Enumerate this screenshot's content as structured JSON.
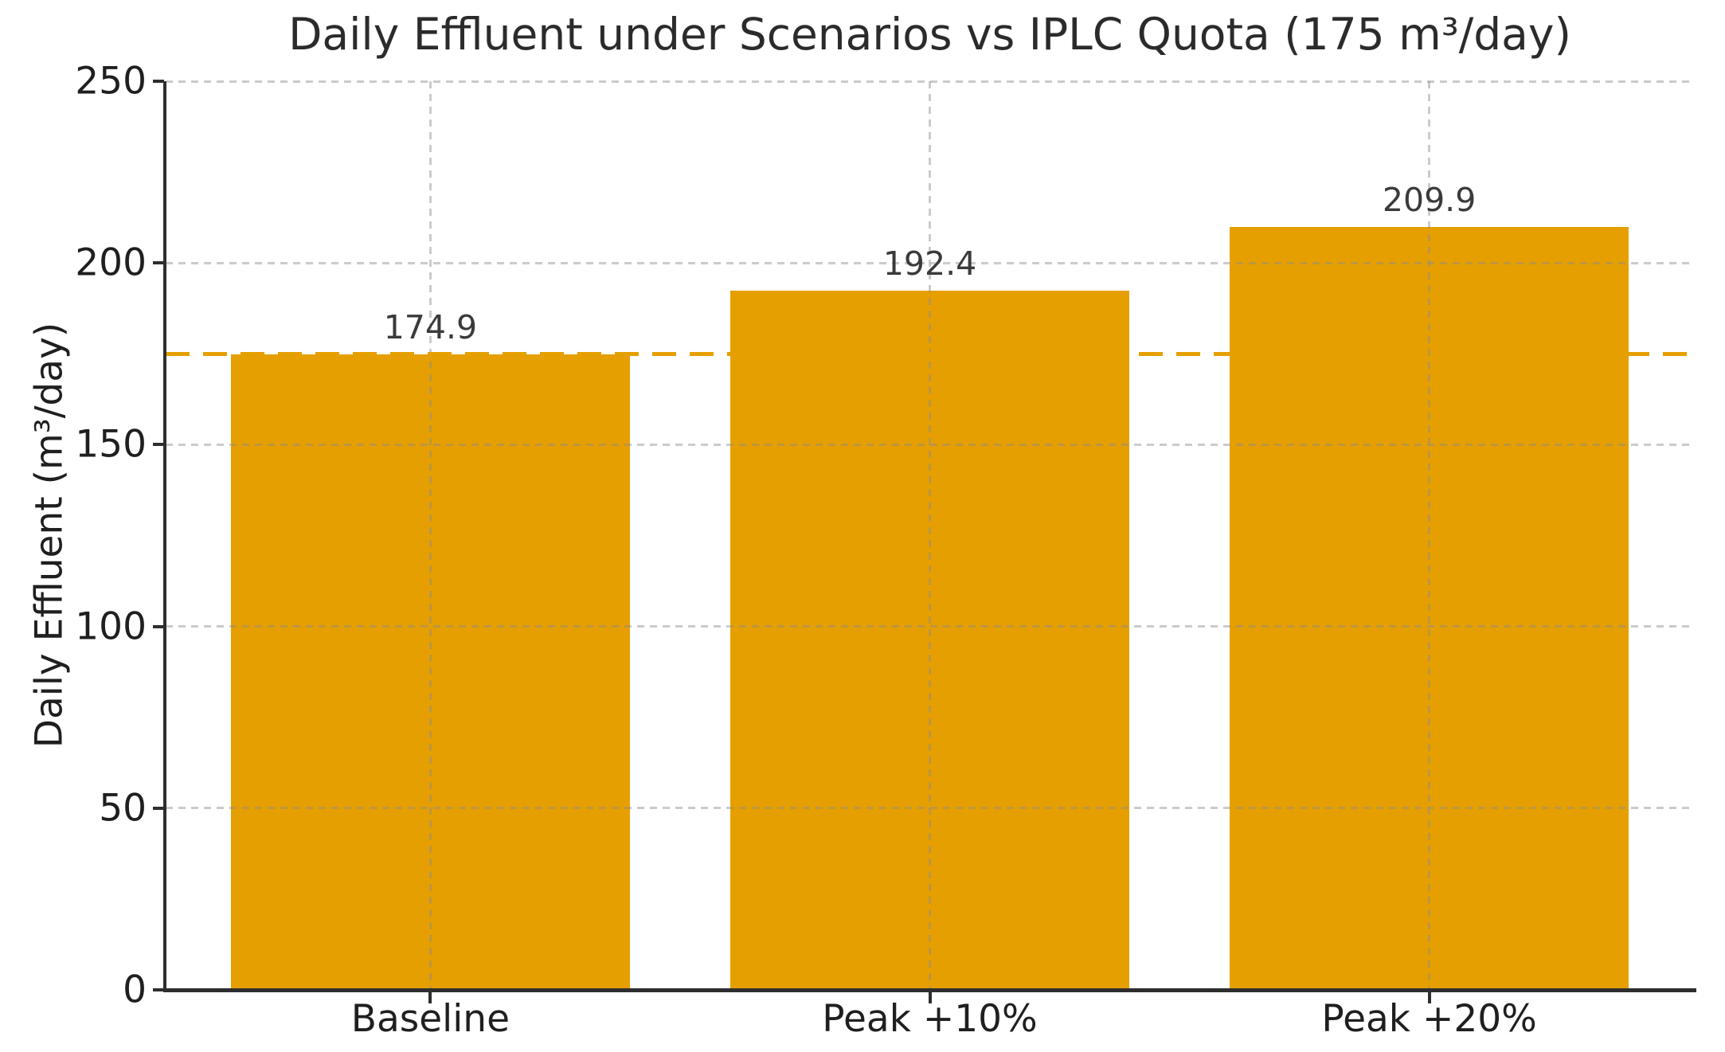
{
  "chart_data": {
    "type": "bar",
    "title": "Daily Effluent under Scenarios vs IPLC Quota (175 m³/day)",
    "ylabel": "Daily Effluent (m³/day)",
    "xlabel": "",
    "categories": [
      "Baseline",
      "Peak +10%",
      "Peak +20%"
    ],
    "values": [
      174.9,
      192.4,
      209.9
    ],
    "bar_value_labels": [
      "174.9",
      "192.4",
      "209.9"
    ],
    "reference_line_value": 175,
    "ylim": [
      0,
      250
    ],
    "yticks": [
      0,
      50,
      100,
      150,
      200,
      250
    ],
    "ytick_labels": [
      "0",
      "50",
      "100",
      "150",
      "200",
      "250"
    ],
    "grid": true,
    "legend": "none",
    "colors": {
      "bar": "#E69F00",
      "reference_line": "#E69F00",
      "grid": "rgba(140,140,140,0.45)",
      "spine": "#2e2e2e",
      "text": "#1f1f1f",
      "background": "#ffffff"
    }
  }
}
